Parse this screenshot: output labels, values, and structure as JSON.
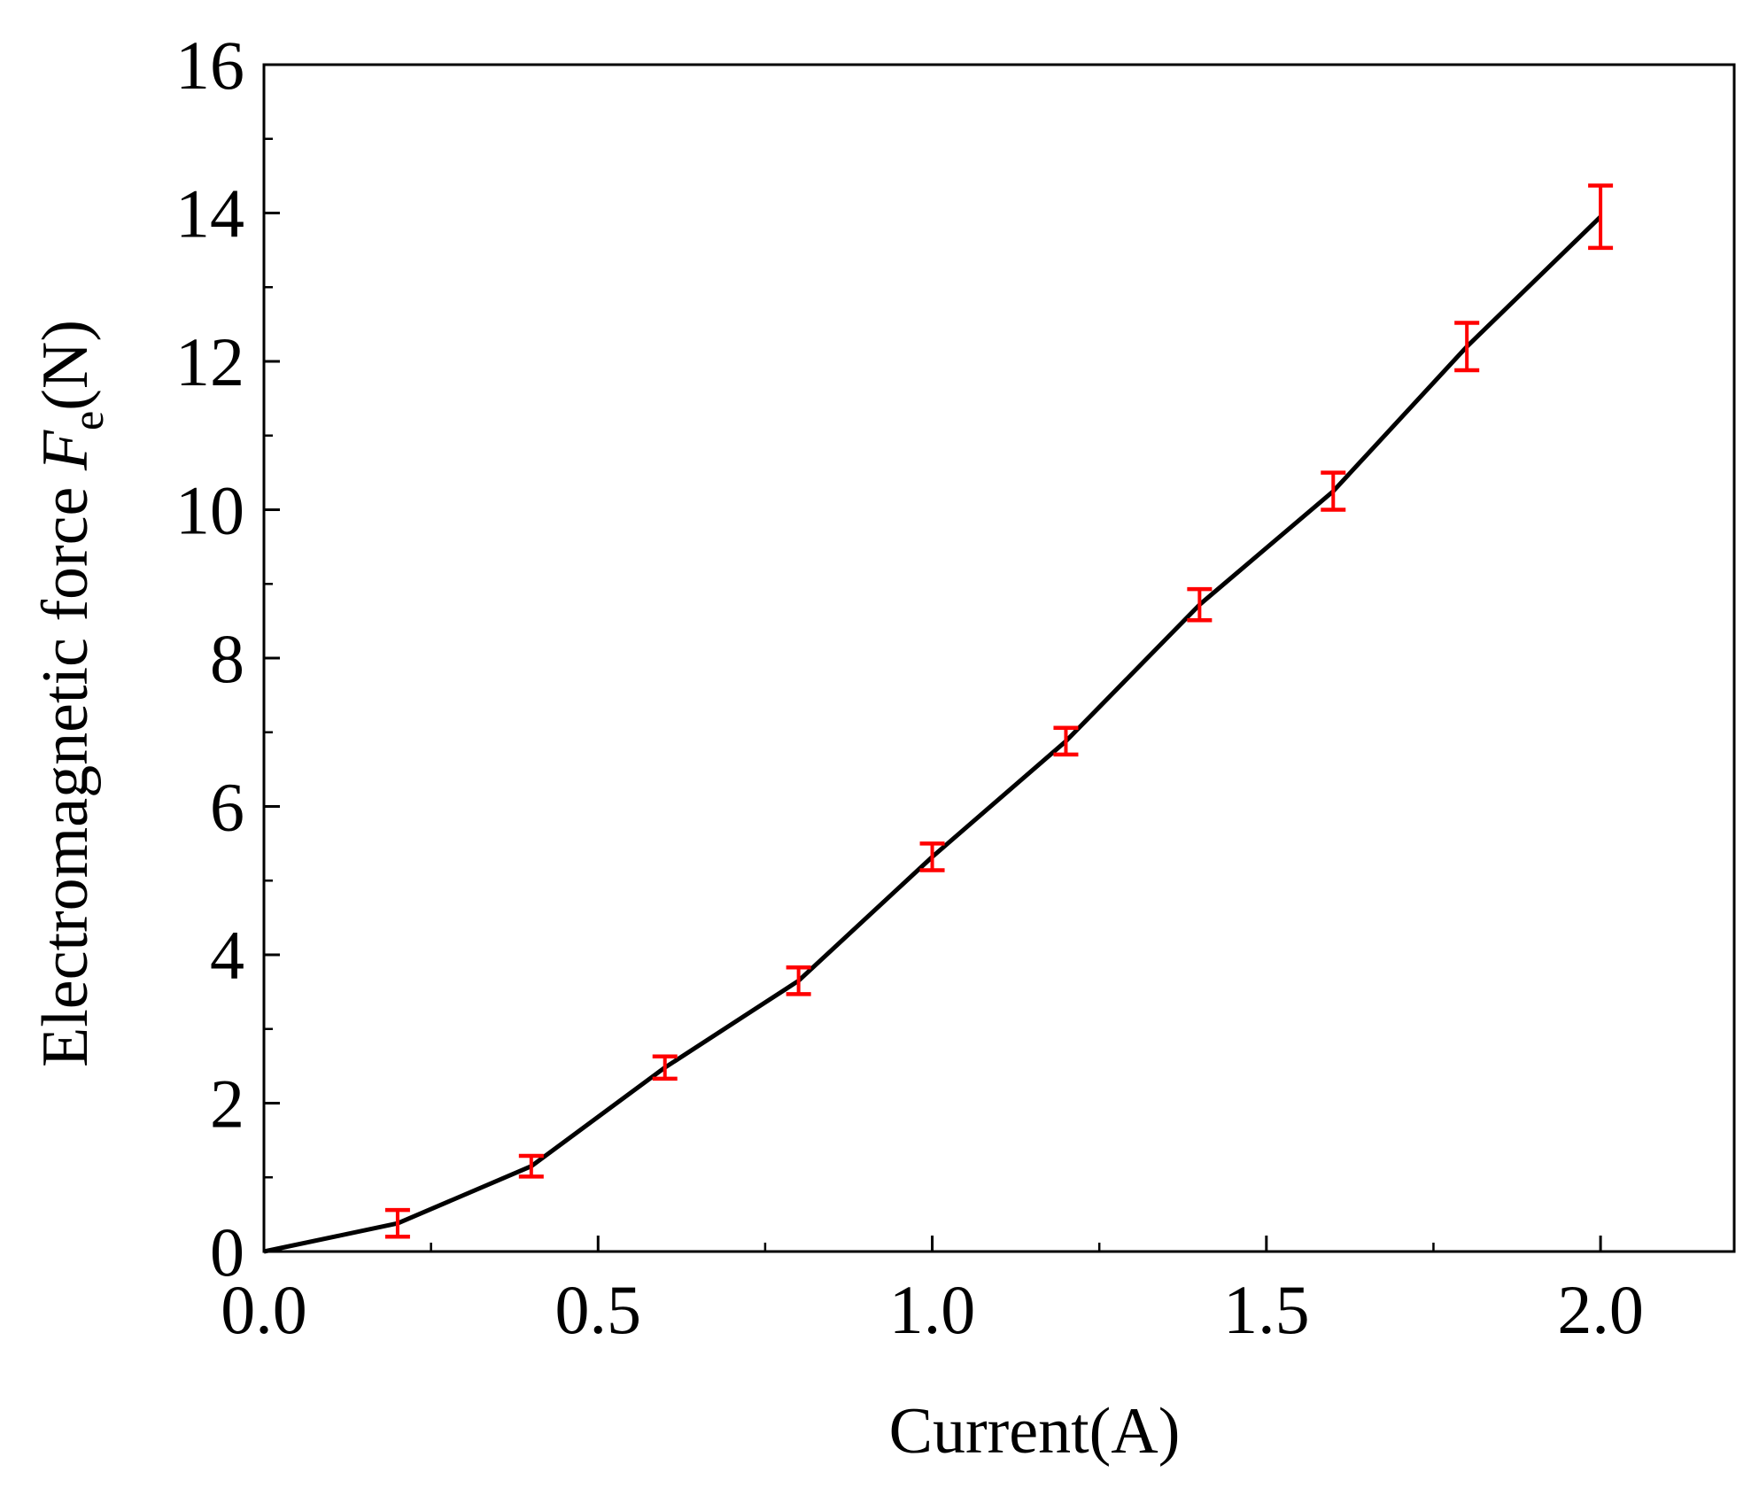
{
  "chart_data": {
    "type": "line",
    "xlabel": "Current(A)",
    "ylabel": {
      "prefix": "Electromagnetic force ",
      "symbol": "F",
      "subscript": "e",
      "suffix": "(N)"
    },
    "xlim": [
      0,
      2.2
    ],
    "ylim": [
      0,
      16
    ],
    "xticks": [
      "0.0",
      "0.5",
      "1.0",
      "1.5",
      "2.0"
    ],
    "xtick_values": [
      0,
      0.5,
      1.0,
      1.5,
      2.0
    ],
    "yticks": [
      "0",
      "2",
      "4",
      "6",
      "8",
      "10",
      "12",
      "14",
      "16"
    ],
    "ytick_values": [
      0,
      2,
      4,
      6,
      8,
      10,
      12,
      14,
      16
    ],
    "x_minor_step": 0.25,
    "y_minor_step": 1,
    "grid": false,
    "line": {
      "x": [
        0,
        0.2,
        0.4,
        0.6,
        0.8,
        1.0,
        1.2,
        1.4,
        1.6,
        1.8,
        2.0
      ],
      "y": [
        0,
        0.38,
        1.15,
        2.48,
        3.65,
        5.32,
        6.88,
        8.72,
        10.25,
        12.2,
        13.95
      ]
    },
    "error_bars": {
      "x": [
        0.2,
        0.4,
        0.6,
        0.8,
        1.0,
        1.2,
        1.4,
        1.6,
        1.8,
        2.0
      ],
      "y": [
        0.38,
        1.15,
        2.48,
        3.65,
        5.32,
        6.88,
        8.72,
        10.25,
        12.2,
        13.95
      ],
      "err": [
        0.18,
        0.14,
        0.15,
        0.18,
        0.18,
        0.18,
        0.21,
        0.25,
        0.32,
        0.42
      ]
    },
    "colors": {
      "line": "#000000",
      "error_bars": "#ff0000",
      "axes": "#000000"
    }
  }
}
